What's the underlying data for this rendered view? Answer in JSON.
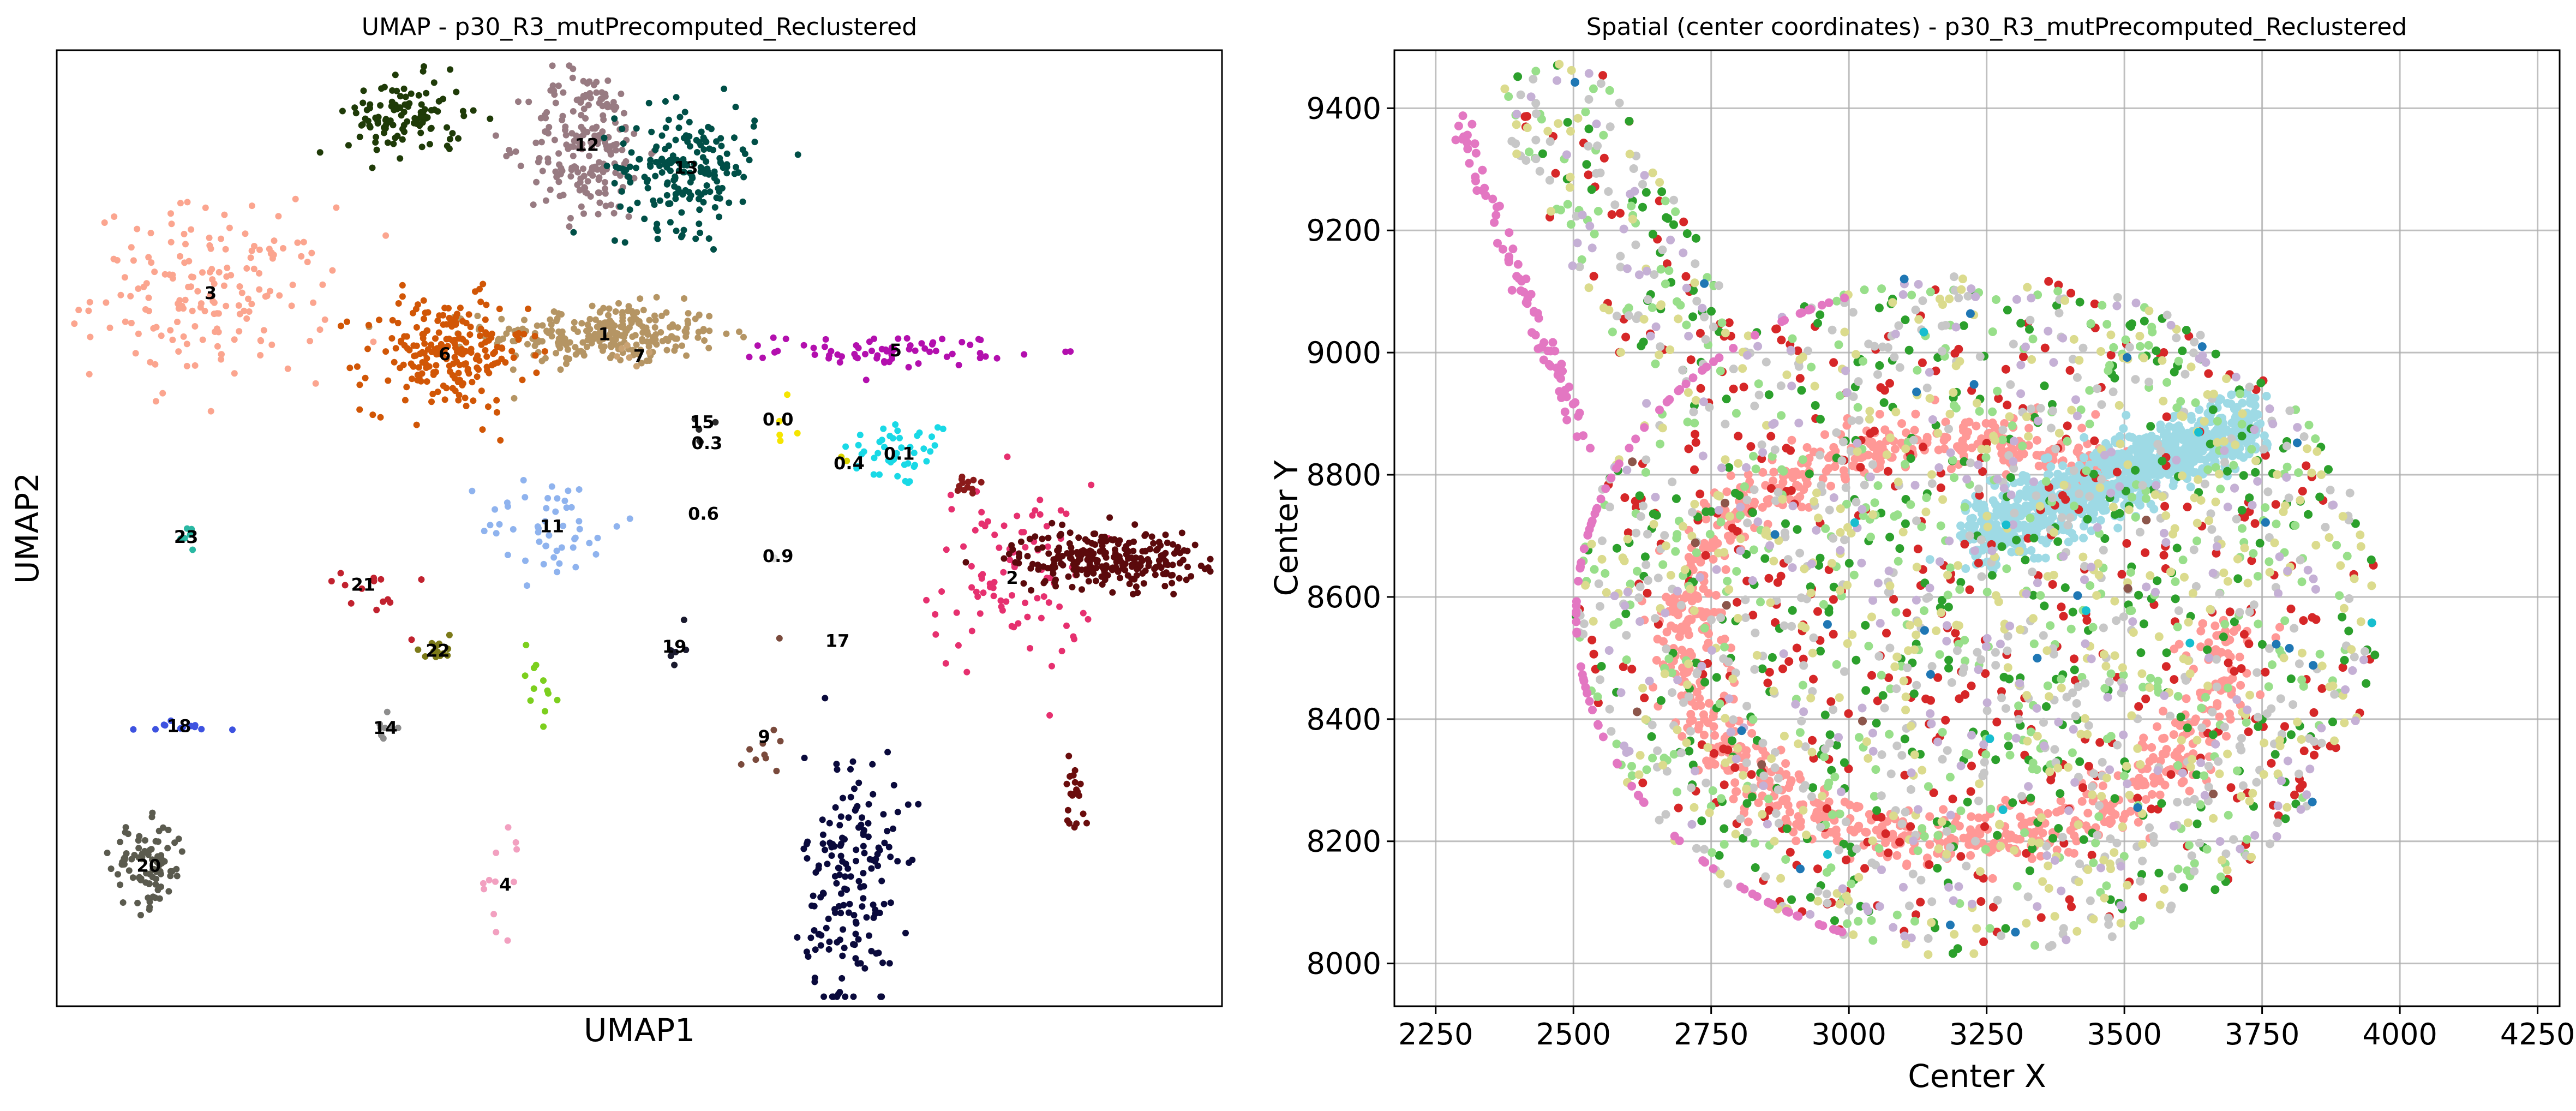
{
  "chart_data": [
    {
      "type": "scatter",
      "title": "UMAP - p30_R3_mutPrecomputed_Reclustered",
      "xlabel": "UMAP1",
      "ylabel": "UMAP2",
      "xlim": [
        0,
        100
      ],
      "ylim": [
        0,
        100
      ],
      "grid": false,
      "legend": "none",
      "clusters": [
        {
          "label": "0.0",
          "color": "#f5e500",
          "center": [
            61.9,
            61.4
          ],
          "spread": [
            0.6,
            2.0
          ],
          "n": 5
        },
        {
          "label": "0.1",
          "color": "#19d9e6",
          "center": [
            72.3,
            57.8
          ],
          "spread": [
            2.5,
            1.8
          ],
          "n": 45
        },
        {
          "label": "0.3",
          "color": "#2a2a2a",
          "center": [
            55.8,
            58.9
          ],
          "spread": [
            0.5,
            0.5
          ],
          "n": 2
        },
        {
          "label": "0.4",
          "color": "#d9d300",
          "center": [
            68.0,
            56.8
          ],
          "spread": [
            0.5,
            0.5
          ],
          "n": 2
        },
        {
          "label": "0.6",
          "color": "#eeeeee",
          "center": [
            55.5,
            51.5
          ],
          "spread": [
            0.5,
            0.5
          ],
          "n": 1
        },
        {
          "label": "0.9",
          "color": "#dddddd",
          "center": [
            61.9,
            47.1
          ],
          "spread": [
            0.5,
            0.5
          ],
          "n": 2
        },
        {
          "label": "1",
          "color": "#b59564",
          "center": [
            47.0,
            70.3
          ],
          "spread": [
            5.0,
            1.6
          ],
          "n": 260
        },
        {
          "label": "2",
          "color": "#e6306f",
          "center": [
            82.0,
            44.8
          ],
          "spread": [
            3.5,
            5.0
          ],
          "n": 90
        },
        {
          "label": "3",
          "color": "#fba58f",
          "center": [
            13.2,
            74.6
          ],
          "spread": [
            5.0,
            4.5
          ],
          "n": 170
        },
        {
          "label": "4",
          "color": "#f2a0c0",
          "center": [
            38.5,
            12.7
          ],
          "spread": [
            1.2,
            3.0
          ],
          "n": 12
        },
        {
          "label": "5",
          "color": "#b30fae",
          "center": [
            72.0,
            68.6
          ],
          "spread": [
            5.0,
            0.8
          ],
          "n": 70
        },
        {
          "label": "6",
          "color": "#d15606",
          "center": [
            33.3,
            68.2
          ],
          "spread": [
            3.5,
            3.0
          ],
          "n": 220
        },
        {
          "label": "7",
          "color": "#c9a272",
          "center": [
            50.0,
            68.0
          ],
          "spread": [
            1.0,
            1.0
          ],
          "n": 6
        },
        {
          "label": "9",
          "color": "#7a4a3c",
          "center": [
            60.7,
            28.2
          ],
          "spread": [
            0.8,
            3.0
          ],
          "n": 10
        },
        {
          "label": "11",
          "color": "#8fb3ee",
          "center": [
            42.5,
            50.2
          ],
          "spread": [
            3.0,
            2.8
          ],
          "n": 50
        },
        {
          "label": "12",
          "color": "#987b82",
          "center": [
            45.5,
            90.1
          ],
          "spread": [
            2.5,
            4.0
          ],
          "n": 200
        },
        {
          "label": "13",
          "color": "#004f47",
          "center": [
            54.0,
            87.7
          ],
          "spread": [
            3.0,
            3.2
          ],
          "n": 190
        },
        {
          "label": "14",
          "color": "#8d8d8d",
          "center": [
            28.2,
            29.1
          ],
          "spread": [
            0.7,
            0.7
          ],
          "n": 8
        },
        {
          "label": "15",
          "color": "#2a2a2a",
          "center": [
            55.4,
            61.1
          ],
          "spread": [
            0.5,
            0.5
          ],
          "n": 3
        },
        {
          "label": "17",
          "color": "#f5f5f5",
          "center": [
            67.0,
            38.2
          ],
          "spread": [
            0.5,
            0.5
          ],
          "n": 2
        },
        {
          "label": "18",
          "color": "#3d52e0",
          "center": [
            10.5,
            29.3
          ],
          "spread": [
            2.0,
            0.3
          ],
          "n": 12
        },
        {
          "label": "19",
          "color": "#1a1a2e",
          "center": [
            53.0,
            37.6
          ],
          "spread": [
            0.5,
            2.0
          ],
          "n": 6
        },
        {
          "label": "20",
          "color": "#5b5b4f",
          "center": [
            7.9,
            14.7
          ],
          "spread": [
            1.6,
            2.2
          ],
          "n": 90
        },
        {
          "label": "21",
          "color": "#c1222f",
          "center": [
            26.3,
            44.1
          ],
          "spread": [
            2.0,
            2.0
          ],
          "n": 14
        },
        {
          "label": "22",
          "color": "#7c7a19",
          "center": [
            32.7,
            37.2
          ],
          "spread": [
            0.7,
            1.0
          ],
          "n": 14
        },
        {
          "label": "23",
          "color": "#2ab8a3",
          "center": [
            11.1,
            49.1
          ],
          "spread": [
            0.6,
            0.6
          ],
          "n": 6
        },
        {
          "label": "",
          "color": "#1f3b08",
          "center": [
            30.0,
            93.0
          ],
          "spread": [
            2.5,
            2.0
          ],
          "n": 110
        },
        {
          "label": "",
          "color": "#5b0a0c",
          "center": [
            90.0,
            46.8
          ],
          "spread": [
            4.0,
            1.5
          ],
          "n": 260
        },
        {
          "label": "",
          "color": "#0a0a3c",
          "center": [
            68.2,
            13.0
          ],
          "spread": [
            2.0,
            7.0
          ],
          "n": 170
        },
        {
          "label": "",
          "color": "#6a0d0d",
          "center": [
            87.5,
            22.5
          ],
          "spread": [
            0.5,
            2.0
          ],
          "n": 20
        },
        {
          "label": "",
          "color": "#7ccf1e",
          "center": [
            41.0,
            34.0
          ],
          "spread": [
            1.0,
            3.0
          ],
          "n": 12
        },
        {
          "label": "",
          "color": "#8a1a1a",
          "center": [
            78.0,
            54.0
          ],
          "spread": [
            1.2,
            0.8
          ],
          "n": 12
        }
      ]
    },
    {
      "type": "scatter",
      "title": "Spatial (center coordinates) - p30_R3_mutPrecomputed_Reclustered",
      "xlabel": "Center X",
      "ylabel": "Center Y",
      "xlim": [
        2175,
        4290
      ],
      "ylim": [
        7930,
        9495
      ],
      "xticks": [
        2250,
        2500,
        2750,
        3000,
        3250,
        3500,
        3750,
        4000,
        4250
      ],
      "yticks": [
        8000,
        8200,
        8400,
        8600,
        8800,
        9000,
        9200,
        9400
      ],
      "grid": true,
      "legend": "none",
      "tissue": {
        "main_center": [
          3230,
          8570
        ],
        "main_radii": [
          730,
          560
        ],
        "arm_start": [
          2470,
          9400
        ],
        "arm_end": [
          2800,
          8850
        ],
        "arm_width": 120
      },
      "groups": [
        {
          "color": "#ff9896",
          "region": "ring",
          "n": 900
        },
        {
          "color": "#9edae5",
          "region": "band",
          "n": 900
        },
        {
          "color": "#d62728",
          "region": "tissue",
          "n": 420
        },
        {
          "color": "#2ca02c",
          "region": "tissue",
          "n": 380
        },
        {
          "color": "#98df8a",
          "region": "tissue",
          "n": 420
        },
        {
          "color": "#c7c7c7",
          "region": "tissue",
          "n": 520
        },
        {
          "color": "#dbdb8d",
          "region": "tissue",
          "n": 440
        },
        {
          "color": "#c5b0d5",
          "region": "tissue",
          "n": 260
        },
        {
          "color": "#e377c2",
          "region": "left-edge",
          "n": 180
        },
        {
          "color": "#1f77b4",
          "region": "tissue",
          "n": 25
        },
        {
          "color": "#17becf",
          "region": "tissue",
          "n": 10
        },
        {
          "color": "#8c564b",
          "region": "tissue",
          "n": 10
        }
      ]
    }
  ]
}
